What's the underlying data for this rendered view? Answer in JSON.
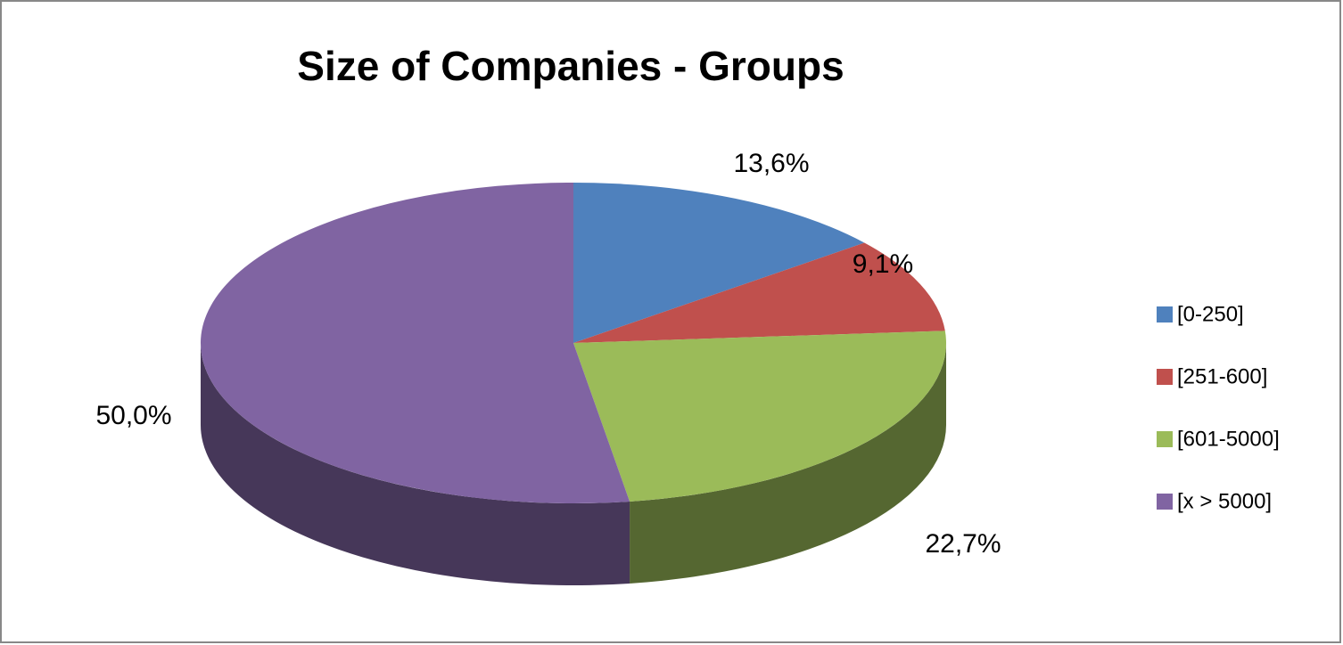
{
  "chart_data": {
    "type": "pie",
    "title": "Size of Companies - Groups",
    "categories": [
      "[0-250]",
      "[251-600]",
      "[601-5000]",
      "[x > 5000]"
    ],
    "values": [
      13.6,
      9.1,
      22.7,
      50.0
    ],
    "value_labels": [
      "13,6%",
      "9,1%",
      "22,7%",
      "50,0%"
    ],
    "colors": [
      "#4f81bd",
      "#c0504d",
      "#9bbb59",
      "#8064a2"
    ],
    "legend": "right"
  }
}
